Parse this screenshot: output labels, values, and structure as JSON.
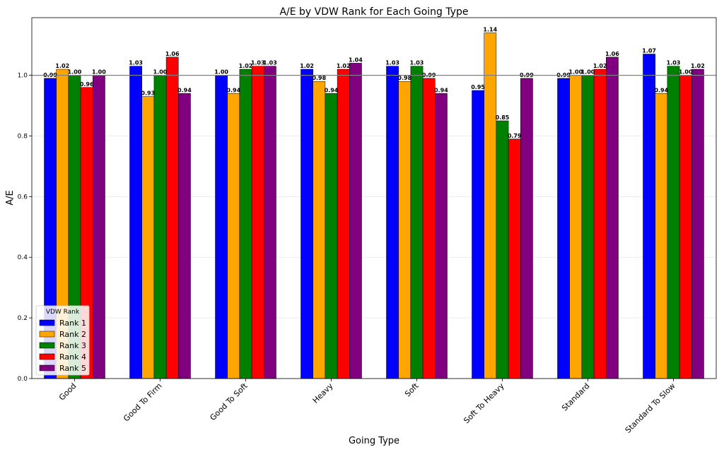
{
  "chart_data": {
    "type": "bar",
    "title": "A/E by VDW Rank for Each Going Type",
    "xlabel": "Going Type",
    "ylabel": "A/E",
    "ylim": [
      0,
      1.19
    ],
    "yticks": [
      "0.0",
      "0.2",
      "0.4",
      "0.6",
      "0.8",
      "1.0"
    ],
    "reference_line": 1.0,
    "grid": "horizontal",
    "legend_title": "VDW Rank",
    "legend_position": "lower-left",
    "categories": [
      "Good",
      "Good To Firm",
      "Good To Soft",
      "Heavy",
      "Soft",
      "Soft To Heavy",
      "Standard",
      "Standard To Slow"
    ],
    "series": [
      {
        "name": "Rank 1",
        "color": "#0000ff",
        "values": [
          0.99,
          1.03,
          1.0,
          1.02,
          1.03,
          0.95,
          0.99,
          1.07
        ],
        "labels": [
          "0.99",
          "1.03",
          "1.00",
          "1.02",
          "1.03",
          "0.95",
          "0.99",
          "1.07"
        ]
      },
      {
        "name": "Rank 2",
        "color": "#ffa500",
        "values": [
          1.02,
          0.93,
          0.94,
          0.98,
          0.98,
          1.14,
          1.0,
          0.94
        ],
        "labels": [
          "1.02",
          "0.93",
          "0.94",
          "0.98",
          "0.98",
          "1.14",
          "1.00",
          "0.94"
        ]
      },
      {
        "name": "Rank 3",
        "color": "#008000",
        "values": [
          1.0,
          1.0,
          1.02,
          0.94,
          1.03,
          0.85,
          1.0,
          1.03
        ],
        "labels": [
          "1.00",
          "1.00",
          "1.02",
          "0.94",
          "1.03",
          "0.85",
          "1.00",
          "1.03"
        ]
      },
      {
        "name": "Rank 4",
        "color": "#ff0000",
        "values": [
          0.96,
          1.06,
          1.03,
          1.02,
          0.99,
          0.79,
          1.02,
          1.0
        ],
        "labels": [
          "0.96",
          "1.06",
          "1.03",
          "1.02",
          "0.99",
          "0.79",
          "1.02",
          "1.00"
        ]
      },
      {
        "name": "Rank 5",
        "color": "#800080",
        "values": [
          1.0,
          0.94,
          1.03,
          1.04,
          0.94,
          0.99,
          1.06,
          1.02
        ],
        "labels": [
          "1.00",
          "0.94",
          "1.03",
          "1.04",
          "0.94",
          "0.99",
          "1.06",
          "1.02"
        ]
      }
    ]
  }
}
